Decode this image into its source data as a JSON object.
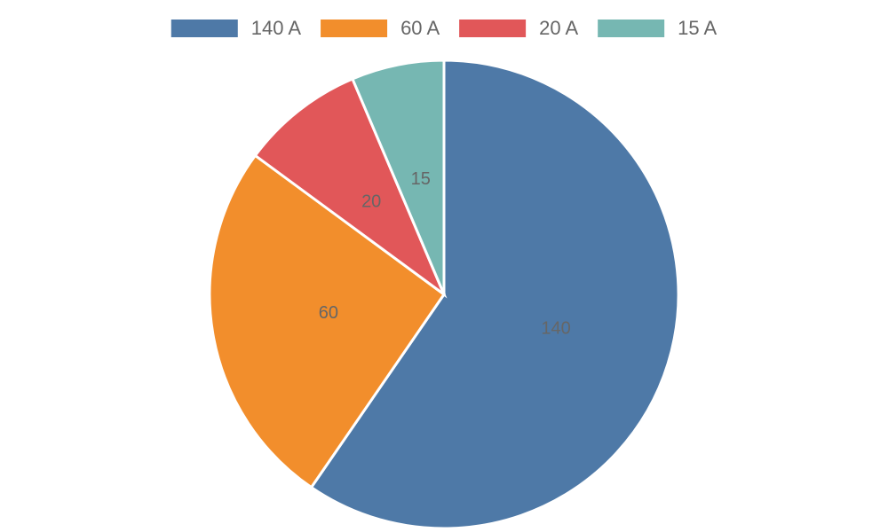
{
  "chart_data": {
    "type": "pie",
    "categories": [
      "140 A",
      "60 A",
      "20 A",
      "15 A"
    ],
    "values": [
      140,
      60,
      20,
      15
    ],
    "colors": [
      "#4e79a7",
      "#f28e2c",
      "#e15759",
      "#76b7b2"
    ],
    "legend": "top"
  }
}
